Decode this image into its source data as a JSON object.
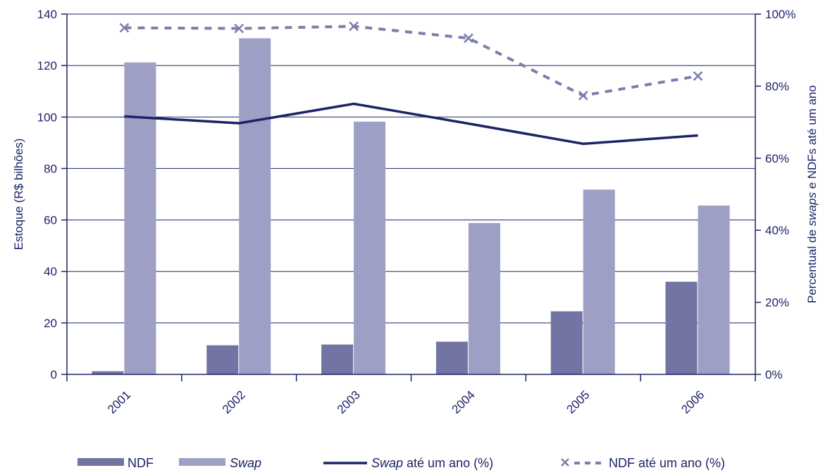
{
  "chart_data": {
    "type": "bar",
    "categories": [
      "2001",
      "2002",
      "2003",
      "2004",
      "2005",
      "2006"
    ],
    "ylabel": "Estoque (R$ bilhões)",
    "ylabel_right_parts": [
      {
        "text": "Percentual de ",
        "italic": false
      },
      {
        "text": "swaps",
        "italic": true
      },
      {
        "text": " e NDFs até um ano",
        "italic": false
      }
    ],
    "ylim": [
      0,
      140
    ],
    "yticks": [
      0,
      20,
      40,
      60,
      80,
      100,
      120,
      140
    ],
    "ylim_right": [
      0,
      100
    ],
    "yticks_right": [
      "0%",
      "20%",
      "40%",
      "60%",
      "80%",
      "100%"
    ],
    "grid": true,
    "legend_position": "bottom",
    "bar_series": [
      {
        "key": "ndf",
        "legend_parts": [
          {
            "text": "NDF",
            "italic": false
          }
        ],
        "color": "#7274a4",
        "values": [
          1.2,
          11.3,
          11.6,
          12.7,
          24.5,
          36.0
        ]
      },
      {
        "key": "swap",
        "legend_parts": [
          {
            "text": "Swap",
            "italic": true
          }
        ],
        "color": "#9e9fc4",
        "values": [
          121.2,
          130.6,
          98.2,
          58.8,
          71.8,
          65.6
        ]
      }
    ],
    "line_series": [
      {
        "key": "swap_ate_um_ano",
        "legend_parts": [
          {
            "text": "Swap",
            "italic": true
          },
          {
            "text": " até um ano (%)",
            "italic": false
          }
        ],
        "color": "#1b2366",
        "style": "solid",
        "axis": "right",
        "values": [
          71.6,
          69.7,
          75.1,
          69.6,
          64.0,
          66.3
        ]
      },
      {
        "key": "ndf_ate_um_ano",
        "legend_parts": [
          {
            "text": "NDF até um ano (%)",
            "italic": false
          }
        ],
        "color": "#7c7ead",
        "style": "dashed",
        "marker": "x",
        "axis": "right",
        "values": [
          96.2,
          96.0,
          96.6,
          93.3,
          77.4,
          82.8
        ]
      }
    ]
  }
}
